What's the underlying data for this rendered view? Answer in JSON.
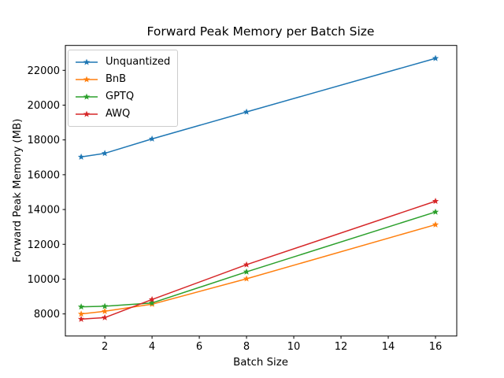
{
  "chart_data": {
    "type": "line",
    "title": "Forward Peak Memory per Batch Size",
    "xlabel": "Batch Size",
    "ylabel": "Forward Peak Memory (MB)",
    "x": [
      1,
      2,
      4,
      8,
      16
    ],
    "series": [
      {
        "name": "Unquantized",
        "color": "#1f77b4",
        "values": [
          17020,
          17230,
          18060,
          19610,
          22690
        ]
      },
      {
        "name": "BnB",
        "color": "#ff7f0e",
        "values": [
          8000,
          8150,
          8560,
          10020,
          13130
        ]
      },
      {
        "name": "GPTQ",
        "color": "#2ca02c",
        "values": [
          8410,
          8440,
          8630,
          10420,
          13860
        ]
      },
      {
        "name": "AWQ",
        "color": "#d62728",
        "values": [
          7700,
          7790,
          8830,
          10830,
          14480
        ]
      }
    ],
    "xticks": [
      2,
      4,
      6,
      8,
      10,
      12,
      14,
      16
    ],
    "yticks": [
      8000,
      10000,
      12000,
      14000,
      16000,
      18000,
      20000,
      22000
    ],
    "xlim": [
      0.33,
      16.9
    ],
    "ylim": [
      6730,
      23430
    ],
    "marker": "star",
    "grid": false,
    "legend_position": "upper-left"
  }
}
